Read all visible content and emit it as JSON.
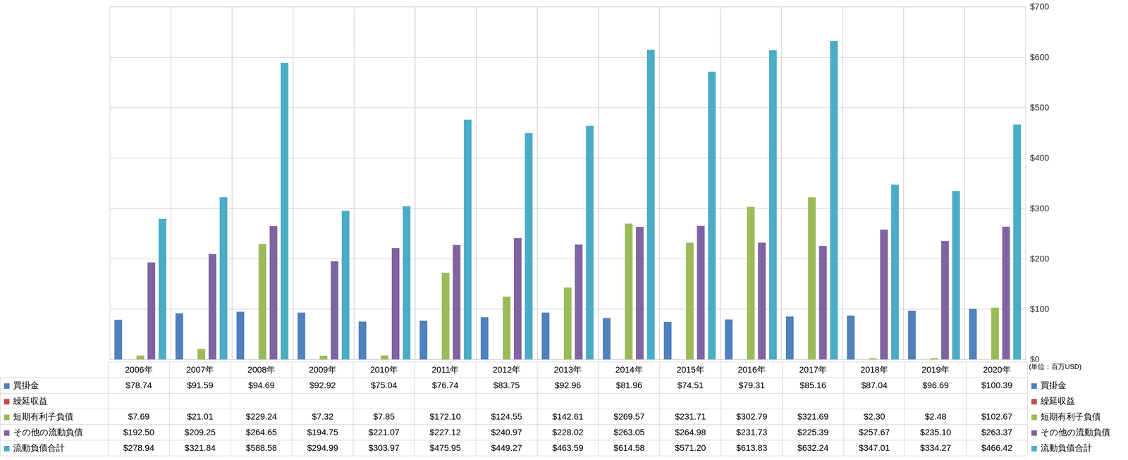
{
  "chart_data": {
    "type": "bar",
    "ylabel": "(単位：百万USD)",
    "categories": [
      "2006年",
      "2007年",
      "2008年",
      "2009年",
      "2010年",
      "2011年",
      "2012年",
      "2013年",
      "2014年",
      "2015年",
      "2016年",
      "2017年",
      "2018年",
      "2019年",
      "2020年"
    ],
    "series": [
      {
        "name": "買掛金",
        "color": "#4f81bd",
        "values": [
          78.74,
          91.59,
          94.69,
          92.92,
          75.04,
          76.74,
          83.75,
          92.96,
          81.96,
          74.51,
          79.31,
          85.16,
          87.04,
          96.69,
          100.39
        ],
        "value_labels": [
          "$78.74",
          "$91.59",
          "$94.69",
          "$92.92",
          "$75.04",
          "$76.74",
          "$83.75",
          "$92.96",
          "$81.96",
          "$74.51",
          "$79.31",
          "$85.16",
          "$87.04",
          "$96.69",
          "$100.39"
        ]
      },
      {
        "name": "繰延収益",
        "color": "#c0504d",
        "values": [
          null,
          null,
          null,
          null,
          null,
          null,
          null,
          null,
          null,
          null,
          null,
          null,
          null,
          null,
          null
        ],
        "value_labels": [
          null,
          null,
          null,
          null,
          null,
          null,
          null,
          null,
          null,
          null,
          null,
          null,
          null,
          null,
          null
        ]
      },
      {
        "name": "短期有利子負債",
        "color": "#9bbb59",
        "values": [
          7.69,
          21.01,
          229.24,
          7.32,
          7.85,
          172.1,
          124.55,
          142.61,
          269.57,
          231.71,
          302.79,
          321.69,
          2.3,
          2.48,
          102.67
        ],
        "value_labels": [
          "$7.69",
          "$21.01",
          "$229.24",
          "$7.32",
          "$7.85",
          "$172.10",
          "$124.55",
          "$142.61",
          "$269.57",
          "$231.71",
          "$302.79",
          "$321.69",
          "$2.30",
          "$2.48",
          "$102.67"
        ]
      },
      {
        "name": "その他の流動負債",
        "color": "#8064a2",
        "values": [
          192.5,
          209.25,
          264.65,
          194.75,
          221.07,
          227.12,
          240.97,
          228.02,
          263.05,
          264.98,
          231.73,
          225.39,
          257.67,
          235.1,
          263.37
        ],
        "value_labels": [
          "$192.50",
          "$209.25",
          "$264.65",
          "$194.75",
          "$221.07",
          "$227.12",
          "$240.97",
          "$228.02",
          "$263.05",
          "$264.98",
          "$231.73",
          "$225.39",
          "$257.67",
          "$235.10",
          "$263.37"
        ]
      },
      {
        "name": "流動負債合計",
        "color": "#4bacc6",
        "values": [
          278.94,
          321.84,
          588.58,
          294.99,
          303.97,
          475.95,
          449.27,
          463.59,
          614.58,
          571.2,
          613.83,
          632.24,
          347.01,
          334.27,
          466.42
        ],
        "value_labels": [
          "$278.94",
          "$321.84",
          "$588.58",
          "$294.99",
          "$303.97",
          "$475.95",
          "$449.27",
          "$463.59",
          "$614.58",
          "$571.20",
          "$613.83",
          "$632.24",
          "$347.01",
          "$334.27",
          "$466.42"
        ]
      }
    ],
    "ylim": [
      0,
      700
    ],
    "yticks": [
      {
        "value": 0,
        "label": "$0"
      },
      {
        "value": 100,
        "label": "$100"
      },
      {
        "value": 200,
        "label": "$200"
      },
      {
        "value": 300,
        "label": "$300"
      },
      {
        "value": 400,
        "label": "$400"
      },
      {
        "value": 500,
        "label": "$500"
      },
      {
        "value": 600,
        "label": "$600"
      },
      {
        "value": 700,
        "label": "$700"
      }
    ],
    "grid": true,
    "data_labels": true
  }
}
